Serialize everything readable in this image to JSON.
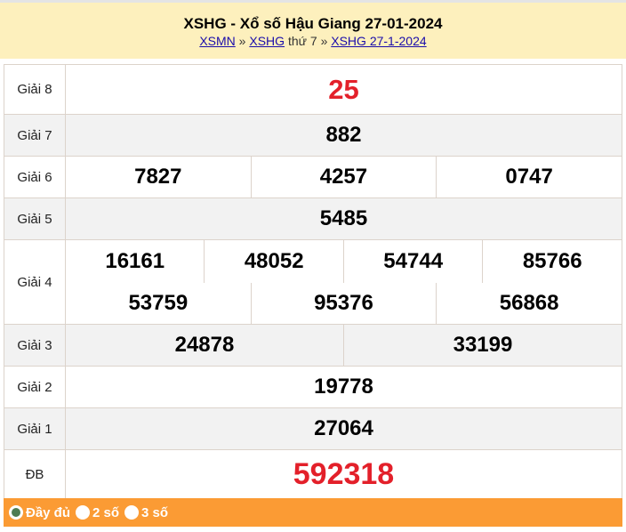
{
  "header": {
    "title": "XSHG - Xổ số Hậu Giang 27-01-2024",
    "crumb1": "XSMN",
    "sep1": "»",
    "crumb2": "XSHG",
    "text": "thứ 7",
    "sep2": "»",
    "crumb3": "XSHG 27-1-2024"
  },
  "prizes": {
    "g8": {
      "label": "Giải 8",
      "values": [
        "25"
      ]
    },
    "g7": {
      "label": "Giải 7",
      "values": [
        "882"
      ]
    },
    "g6": {
      "label": "Giải 6",
      "values": [
        "7827",
        "4257",
        "0747"
      ]
    },
    "g5": {
      "label": "Giải 5",
      "values": [
        "5485"
      ]
    },
    "g4": {
      "label": "Giải 4",
      "values": [
        "16161",
        "48052",
        "54744",
        "85766",
        "53759",
        "95376",
        "56868"
      ]
    },
    "g3": {
      "label": "Giải 3",
      "values": [
        "24878",
        "33199"
      ]
    },
    "g2": {
      "label": "Giải 2",
      "values": [
        "19778"
      ]
    },
    "g1": {
      "label": "Giải 1",
      "values": [
        "27064"
      ]
    },
    "db": {
      "label": "ĐB",
      "values": [
        "592318"
      ]
    }
  },
  "colors": {
    "highlight": "#e3202a",
    "header_bg": "#fdf0bd",
    "footer_bg": "#fb9b34"
  },
  "footer": {
    "options": [
      {
        "label": "Đầy đủ",
        "selected": true
      },
      {
        "label": "2 số",
        "selected": false
      },
      {
        "label": "3 số",
        "selected": false
      }
    ]
  }
}
